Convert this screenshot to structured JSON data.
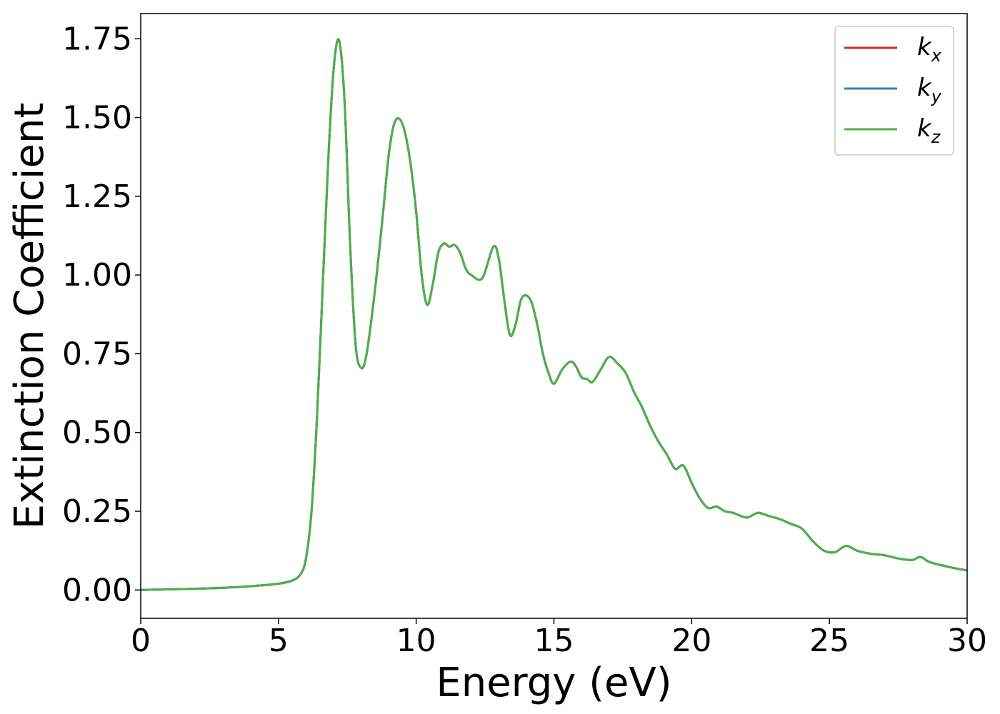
{
  "chart_data": {
    "type": "line",
    "title": "",
    "xlabel": "Energy (eV)",
    "ylabel": "Extinction Coefficient",
    "xlim": [
      0,
      30
    ],
    "ylim": [
      -0.09,
      1.83
    ],
    "x_ticks": [
      0,
      5,
      10,
      15,
      20,
      25,
      30
    ],
    "x_tick_labels": [
      "0",
      "5",
      "10",
      "15",
      "20",
      "25",
      "30"
    ],
    "y_ticks": [
      0.0,
      0.25,
      0.5,
      0.75,
      1.0,
      1.25,
      1.5,
      1.75
    ],
    "y_tick_labels": [
      "0.00",
      "0.25",
      "0.50",
      "0.75",
      "1.00",
      "1.25",
      "1.50",
      "1.75"
    ],
    "grid": false,
    "legend_placement": "top-right",
    "series": [
      {
        "name": "k_x",
        "legend_base": "k",
        "legend_sub": "x",
        "color": "#d62728",
        "x": [
          0,
          1,
          2,
          3,
          4,
          5,
          5.5,
          5.8,
          6.0,
          6.2,
          6.4,
          6.6,
          6.8,
          7.0,
          7.2,
          7.4,
          7.6,
          7.8,
          8.0,
          8.2,
          8.5,
          8.8,
          9.0,
          9.2,
          9.4,
          9.6,
          9.8,
          10.0,
          10.2,
          10.4,
          10.6,
          10.8,
          11.0,
          11.2,
          11.4,
          11.6,
          11.8,
          12.0,
          12.4,
          12.8,
          13.0,
          13.2,
          13.4,
          13.6,
          13.8,
          14.0,
          14.2,
          14.4,
          14.6,
          14.8,
          15.0,
          15.3,
          15.6,
          15.8,
          16.0,
          16.2,
          16.4,
          16.7,
          17.0,
          17.3,
          17.6,
          17.9,
          18.2,
          18.5,
          18.8,
          19.1,
          19.4,
          19.7,
          20.0,
          20.3,
          20.6,
          20.9,
          21.2,
          21.5,
          22.0,
          22.4,
          22.8,
          23.2,
          23.6,
          24.0,
          24.4,
          24.8,
          25.2,
          25.6,
          26.0,
          26.5,
          27.0,
          27.5,
          28.0,
          28.3,
          28.6,
          29.0,
          29.5,
          30.0
        ],
        "values": [
          0.0,
          0.002,
          0.004,
          0.007,
          0.012,
          0.02,
          0.03,
          0.05,
          0.1,
          0.25,
          0.55,
          0.95,
          1.35,
          1.65,
          1.745,
          1.55,
          1.1,
          0.78,
          0.705,
          0.75,
          0.95,
          1.2,
          1.38,
          1.48,
          1.495,
          1.45,
          1.35,
          1.2,
          1.0,
          0.905,
          0.97,
          1.07,
          1.1,
          1.09,
          1.095,
          1.07,
          1.02,
          1.0,
          0.99,
          1.09,
          1.05,
          0.92,
          0.81,
          0.84,
          0.92,
          0.935,
          0.91,
          0.84,
          0.75,
          0.69,
          0.655,
          0.7,
          0.725,
          0.71,
          0.675,
          0.67,
          0.66,
          0.7,
          0.74,
          0.72,
          0.69,
          0.63,
          0.58,
          0.52,
          0.47,
          0.43,
          0.385,
          0.395,
          0.34,
          0.29,
          0.26,
          0.265,
          0.25,
          0.245,
          0.23,
          0.245,
          0.235,
          0.225,
          0.21,
          0.195,
          0.155,
          0.125,
          0.12,
          0.14,
          0.125,
          0.115,
          0.11,
          0.1,
          0.095,
          0.105,
          0.09,
          0.08,
          0.07,
          0.062
        ]
      },
      {
        "name": "k_y",
        "legend_base": "k",
        "legend_sub": "y",
        "color": "#377eb8",
        "x": [
          0,
          1,
          2,
          3,
          4,
          5,
          5.5,
          5.8,
          6.0,
          6.2,
          6.4,
          6.6,
          6.8,
          7.0,
          7.2,
          7.4,
          7.6,
          7.8,
          8.0,
          8.2,
          8.5,
          8.8,
          9.0,
          9.2,
          9.4,
          9.6,
          9.8,
          10.0,
          10.2,
          10.4,
          10.6,
          10.8,
          11.0,
          11.2,
          11.4,
          11.6,
          11.8,
          12.0,
          12.4,
          12.8,
          13.0,
          13.2,
          13.4,
          13.6,
          13.8,
          14.0,
          14.2,
          14.4,
          14.6,
          14.8,
          15.0,
          15.3,
          15.6,
          15.8,
          16.0,
          16.2,
          16.4,
          16.7,
          17.0,
          17.3,
          17.6,
          17.9,
          18.2,
          18.5,
          18.8,
          19.1,
          19.4,
          19.7,
          20.0,
          20.3,
          20.6,
          20.9,
          21.2,
          21.5,
          22.0,
          22.4,
          22.8,
          23.2,
          23.6,
          24.0,
          24.4,
          24.8,
          25.2,
          25.6,
          26.0,
          26.5,
          27.0,
          27.5,
          28.0,
          28.3,
          28.6,
          29.0,
          29.5,
          30.0
        ],
        "values": [
          0.0,
          0.002,
          0.004,
          0.007,
          0.012,
          0.02,
          0.03,
          0.05,
          0.1,
          0.25,
          0.55,
          0.95,
          1.35,
          1.65,
          1.745,
          1.55,
          1.1,
          0.78,
          0.705,
          0.75,
          0.95,
          1.2,
          1.38,
          1.48,
          1.495,
          1.45,
          1.35,
          1.2,
          1.0,
          0.905,
          0.97,
          1.07,
          1.1,
          1.09,
          1.095,
          1.07,
          1.02,
          1.0,
          0.99,
          1.09,
          1.05,
          0.92,
          0.81,
          0.84,
          0.92,
          0.935,
          0.91,
          0.84,
          0.75,
          0.69,
          0.655,
          0.7,
          0.725,
          0.71,
          0.675,
          0.67,
          0.66,
          0.7,
          0.74,
          0.72,
          0.69,
          0.63,
          0.58,
          0.52,
          0.47,
          0.43,
          0.385,
          0.395,
          0.34,
          0.29,
          0.26,
          0.265,
          0.25,
          0.245,
          0.23,
          0.245,
          0.235,
          0.225,
          0.21,
          0.195,
          0.155,
          0.125,
          0.12,
          0.14,
          0.125,
          0.115,
          0.11,
          0.1,
          0.095,
          0.105,
          0.09,
          0.08,
          0.07,
          0.062
        ]
      },
      {
        "name": "k_z",
        "legend_base": "k",
        "legend_sub": "z",
        "color": "#4daf4a",
        "x": [
          0,
          1,
          2,
          3,
          4,
          5,
          5.5,
          5.8,
          6.0,
          6.2,
          6.4,
          6.6,
          6.8,
          7.0,
          7.2,
          7.4,
          7.6,
          7.8,
          8.0,
          8.2,
          8.5,
          8.8,
          9.0,
          9.2,
          9.4,
          9.6,
          9.8,
          10.0,
          10.2,
          10.4,
          10.6,
          10.8,
          11.0,
          11.2,
          11.4,
          11.6,
          11.8,
          12.0,
          12.4,
          12.8,
          13.0,
          13.2,
          13.4,
          13.6,
          13.8,
          14.0,
          14.2,
          14.4,
          14.6,
          14.8,
          15.0,
          15.3,
          15.6,
          15.8,
          16.0,
          16.2,
          16.4,
          16.7,
          17.0,
          17.3,
          17.6,
          17.9,
          18.2,
          18.5,
          18.8,
          19.1,
          19.4,
          19.7,
          20.0,
          20.3,
          20.6,
          20.9,
          21.2,
          21.5,
          22.0,
          22.4,
          22.8,
          23.2,
          23.6,
          24.0,
          24.4,
          24.8,
          25.2,
          25.6,
          26.0,
          26.5,
          27.0,
          27.5,
          28.0,
          28.3,
          28.6,
          29.0,
          29.5,
          30.0
        ],
        "values": [
          0.0,
          0.002,
          0.004,
          0.007,
          0.012,
          0.02,
          0.03,
          0.05,
          0.1,
          0.25,
          0.55,
          0.95,
          1.35,
          1.65,
          1.745,
          1.55,
          1.1,
          0.78,
          0.705,
          0.75,
          0.95,
          1.2,
          1.38,
          1.48,
          1.495,
          1.45,
          1.35,
          1.2,
          1.0,
          0.905,
          0.97,
          1.07,
          1.1,
          1.09,
          1.095,
          1.07,
          1.02,
          1.0,
          0.99,
          1.09,
          1.05,
          0.92,
          0.81,
          0.84,
          0.92,
          0.935,
          0.91,
          0.84,
          0.75,
          0.69,
          0.655,
          0.7,
          0.725,
          0.71,
          0.675,
          0.67,
          0.66,
          0.7,
          0.74,
          0.72,
          0.69,
          0.63,
          0.58,
          0.52,
          0.47,
          0.43,
          0.385,
          0.395,
          0.34,
          0.29,
          0.26,
          0.265,
          0.25,
          0.245,
          0.23,
          0.245,
          0.235,
          0.225,
          0.21,
          0.195,
          0.155,
          0.125,
          0.12,
          0.14,
          0.125,
          0.115,
          0.11,
          0.1,
          0.095,
          0.105,
          0.09,
          0.08,
          0.07,
          0.062
        ]
      }
    ]
  }
}
